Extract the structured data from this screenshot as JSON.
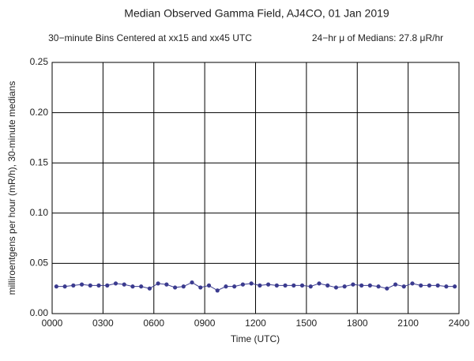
{
  "chart_data": {
    "type": "line",
    "title": "Median Observed Gamma Field, AJ4CO, 01 Jan 2019",
    "subtitle": "30−minute Bins Centered at xx15 and xx45 UTC",
    "annotation": "24−hr μ of Medians: 27.8 μR/hr",
    "x_label": "Time (UTC)",
    "y_label": "milliroentgens per hour (mR/h), 30-minute medians",
    "color": "#3b3b8f",
    "grid": true,
    "x": [
      0.25,
      0.75,
      1.25,
      1.75,
      2.25,
      2.75,
      3.25,
      3.75,
      4.25,
      4.75,
      5.25,
      5.75,
      6.25,
      6.75,
      7.25,
      7.75,
      8.25,
      8.75,
      9.25,
      9.75,
      10.25,
      10.75,
      11.25,
      11.75,
      12.25,
      12.75,
      13.25,
      13.75,
      14.25,
      14.75,
      15.25,
      15.75,
      16.25,
      16.75,
      17.25,
      17.75,
      18.25,
      18.75,
      19.25,
      19.75,
      20.25,
      20.75,
      21.25,
      21.75,
      22.25,
      22.75,
      23.25,
      23.75
    ],
    "values": [
      0.027,
      0.027,
      0.028,
      0.029,
      0.028,
      0.028,
      0.028,
      0.03,
      0.029,
      0.027,
      0.027,
      0.025,
      0.03,
      0.029,
      0.026,
      0.027,
      0.031,
      0.026,
      0.028,
      0.023,
      0.027,
      0.027,
      0.029,
      0.03,
      0.028,
      0.029,
      0.028,
      0.028,
      0.028,
      0.028,
      0.027,
      0.03,
      0.028,
      0.026,
      0.027,
      0.029,
      0.028,
      0.028,
      0.027,
      0.025,
      0.029,
      0.027,
      0.03,
      0.028,
      0.028,
      0.028,
      0.027,
      0.027
    ],
    "xlim": [
      0,
      24
    ],
    "xticks": [
      {
        "value": 0,
        "label": "0000"
      },
      {
        "value": 3,
        "label": "0300"
      },
      {
        "value": 6,
        "label": "0600"
      },
      {
        "value": 9,
        "label": "0900"
      },
      {
        "value": 12,
        "label": "1200"
      },
      {
        "value": 15,
        "label": "1500"
      },
      {
        "value": 18,
        "label": "1800"
      },
      {
        "value": 21,
        "label": "2100"
      },
      {
        "value": 24,
        "label": "2400"
      }
    ],
    "ylim": [
      0,
      0.25
    ],
    "yticks": [
      {
        "value": 0,
        "label": "0.00"
      },
      0.05,
      {
        "value": 0.1,
        "label": "0.10"
      },
      0.15,
      {
        "value": 0.2,
        "label": "0.20"
      },
      0.25
    ]
  }
}
